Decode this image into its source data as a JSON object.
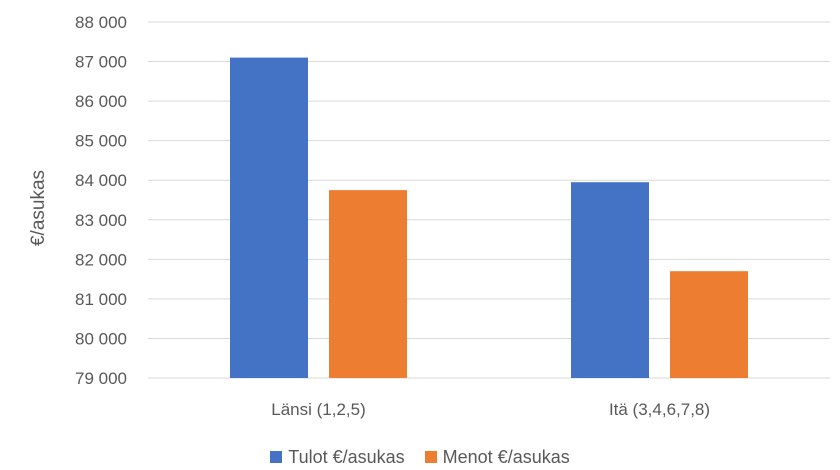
{
  "chart_data": {
    "type": "bar",
    "categories": [
      "Länsi (1,2,5)",
      "Itä (3,4,6,7,8)"
    ],
    "series": [
      {
        "name": "Tulot €/asukas",
        "values": [
          87100,
          83950
        ],
        "color": "#4472C4"
      },
      {
        "name": "Menot €/asukas",
        "values": [
          83750,
          81700
        ],
        "color": "#ED7D31"
      }
    ],
    "ylabel": "€/asukas",
    "ylim": [
      79000,
      88000
    ],
    "yticks": [
      79000,
      80000,
      81000,
      82000,
      83000,
      84000,
      85000,
      86000,
      87000,
      88000
    ],
    "ytick_labels": [
      "79 000",
      "80 000",
      "81 000",
      "82 000",
      "83 000",
      "84 000",
      "85 000",
      "86 000",
      "87 000",
      "88 000"
    ],
    "grid": true,
    "legend": "bottom",
    "gridline_color": "#D9D9D9"
  }
}
